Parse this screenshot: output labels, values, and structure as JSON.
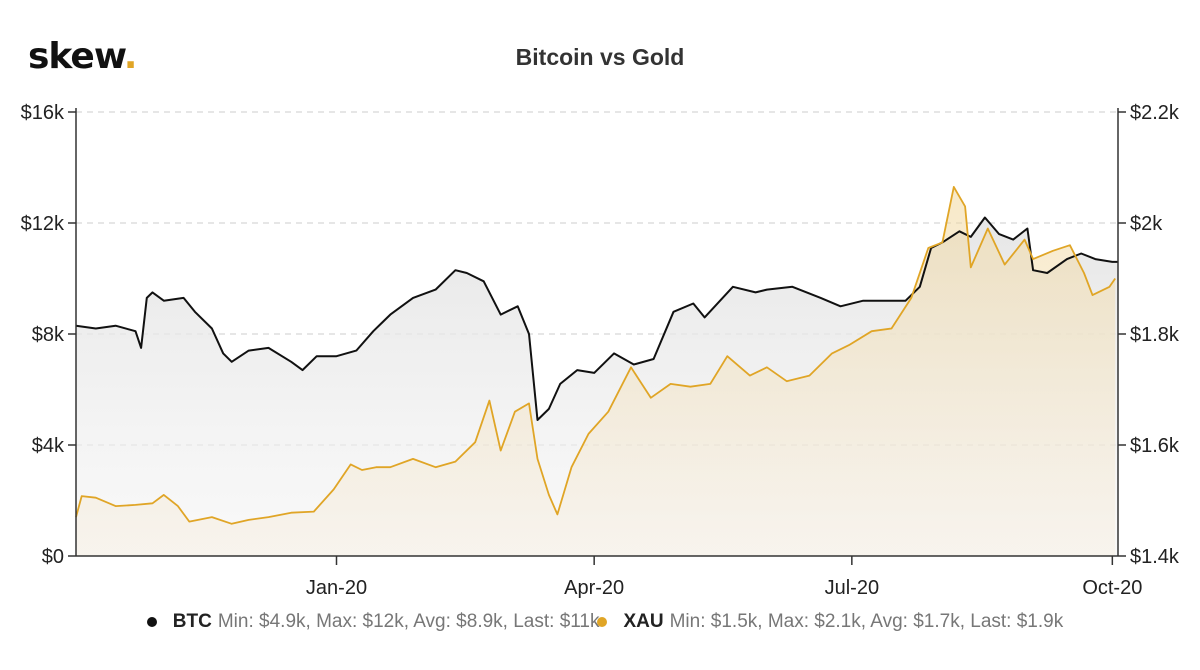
{
  "logo": {
    "text": "skew",
    "dot": "."
  },
  "colors": {
    "btc": "#111111",
    "xau": "#e0a526",
    "grid": "#dddddd",
    "axis": "#333333"
  },
  "chart_data": {
    "type": "line",
    "title": "Bitcoin vs Gold",
    "x_ticks": [
      "Jan-20",
      "Apr-20",
      "Jul-20",
      "Oct-20"
    ],
    "x_tick_dates": [
      "2020-01-01",
      "2020-04-01",
      "2020-07-01",
      "2020-10-01"
    ],
    "x_range": [
      "2019-10-01",
      "2020-10-03"
    ],
    "y_left": {
      "ticks": [
        "$0",
        "$4k",
        "$8k",
        "$12k",
        "$16k"
      ],
      "range": [
        0,
        16000
      ]
    },
    "y_right": {
      "ticks": [
        "$1.4k",
        "$1.6k",
        "$1.8k",
        "$2k",
        "$2.2k"
      ],
      "range": [
        1400,
        2200
      ]
    },
    "grid": true,
    "legend_position": "bottom",
    "series": [
      {
        "name": "BTC",
        "axis": "left",
        "color": "#111111",
        "stats": "Min: $4.9k, Max: $12k, Avg: $8.9k, Last: $11k",
        "points": [
          [
            "2019-10-01",
            8300
          ],
          [
            "2019-10-08",
            8200
          ],
          [
            "2019-10-15",
            8300
          ],
          [
            "2019-10-22",
            8100
          ],
          [
            "2019-10-24",
            7500
          ],
          [
            "2019-10-26",
            9300
          ],
          [
            "2019-10-28",
            9500
          ],
          [
            "2019-11-01",
            9200
          ],
          [
            "2019-11-08",
            9300
          ],
          [
            "2019-11-12",
            8800
          ],
          [
            "2019-11-18",
            8200
          ],
          [
            "2019-11-22",
            7300
          ],
          [
            "2019-11-25",
            7000
          ],
          [
            "2019-12-01",
            7400
          ],
          [
            "2019-12-08",
            7500
          ],
          [
            "2019-12-16",
            7000
          ],
          [
            "2019-12-20",
            6700
          ],
          [
            "2019-12-25",
            7200
          ],
          [
            "2020-01-01",
            7200
          ],
          [
            "2020-01-08",
            7400
          ],
          [
            "2020-01-14",
            8100
          ],
          [
            "2020-01-20",
            8700
          ],
          [
            "2020-01-28",
            9300
          ],
          [
            "2020-02-05",
            9600
          ],
          [
            "2020-02-12",
            10300
          ],
          [
            "2020-02-16",
            10200
          ],
          [
            "2020-02-22",
            9900
          ],
          [
            "2020-02-28",
            8700
          ],
          [
            "2020-03-05",
            9000
          ],
          [
            "2020-03-09",
            8000
          ],
          [
            "2020-03-12",
            4900
          ],
          [
            "2020-03-16",
            5300
          ],
          [
            "2020-03-20",
            6200
          ],
          [
            "2020-03-26",
            6700
          ],
          [
            "2020-04-01",
            6600
          ],
          [
            "2020-04-08",
            7300
          ],
          [
            "2020-04-15",
            6900
          ],
          [
            "2020-04-22",
            7100
          ],
          [
            "2020-04-29",
            8800
          ],
          [
            "2020-05-06",
            9100
          ],
          [
            "2020-05-10",
            8600
          ],
          [
            "2020-05-20",
            9700
          ],
          [
            "2020-05-28",
            9500
          ],
          [
            "2020-06-01",
            9600
          ],
          [
            "2020-06-10",
            9700
          ],
          [
            "2020-06-20",
            9300
          ],
          [
            "2020-06-27",
            9000
          ],
          [
            "2020-07-05",
            9200
          ],
          [
            "2020-07-12",
            9200
          ],
          [
            "2020-07-20",
            9200
          ],
          [
            "2020-07-25",
            9700
          ],
          [
            "2020-07-29",
            11100
          ],
          [
            "2020-08-02",
            11300
          ],
          [
            "2020-08-08",
            11700
          ],
          [
            "2020-08-12",
            11500
          ],
          [
            "2020-08-17",
            12200
          ],
          [
            "2020-08-22",
            11600
          ],
          [
            "2020-08-27",
            11400
          ],
          [
            "2020-09-01",
            11800
          ],
          [
            "2020-09-03",
            10300
          ],
          [
            "2020-09-08",
            10200
          ],
          [
            "2020-09-15",
            10700
          ],
          [
            "2020-09-20",
            10900
          ],
          [
            "2020-09-25",
            10700
          ],
          [
            "2020-10-01",
            10600
          ],
          [
            "2020-10-03",
            10600
          ]
        ]
      },
      {
        "name": "XAU",
        "axis": "right",
        "color": "#e0a526",
        "stats": "Min: $1.5k, Max: $2.1k, Avg: $1.7k, Last: $1.9k",
        "points": [
          [
            "2019-10-01",
            1470
          ],
          [
            "2019-10-03",
            1508
          ],
          [
            "2019-10-08",
            1505
          ],
          [
            "2019-10-15",
            1490
          ],
          [
            "2019-10-22",
            1492
          ],
          [
            "2019-10-28",
            1495
          ],
          [
            "2019-11-01",
            1510
          ],
          [
            "2019-11-06",
            1490
          ],
          [
            "2019-11-10",
            1462
          ],
          [
            "2019-11-18",
            1470
          ],
          [
            "2019-11-25",
            1458
          ],
          [
            "2019-12-01",
            1465
          ],
          [
            "2019-12-08",
            1470
          ],
          [
            "2019-12-16",
            1478
          ],
          [
            "2019-12-24",
            1480
          ],
          [
            "2019-12-31",
            1520
          ],
          [
            "2020-01-06",
            1565
          ],
          [
            "2020-01-10",
            1555
          ],
          [
            "2020-01-15",
            1560
          ],
          [
            "2020-01-20",
            1560
          ],
          [
            "2020-01-28",
            1575
          ],
          [
            "2020-02-05",
            1560
          ],
          [
            "2020-02-12",
            1570
          ],
          [
            "2020-02-19",
            1605
          ],
          [
            "2020-02-24",
            1680
          ],
          [
            "2020-02-28",
            1590
          ],
          [
            "2020-03-04",
            1660
          ],
          [
            "2020-03-09",
            1675
          ],
          [
            "2020-03-12",
            1575
          ],
          [
            "2020-03-16",
            1510
          ],
          [
            "2020-03-19",
            1475
          ],
          [
            "2020-03-24",
            1560
          ],
          [
            "2020-03-30",
            1620
          ],
          [
            "2020-04-06",
            1660
          ],
          [
            "2020-04-14",
            1740
          ],
          [
            "2020-04-21",
            1685
          ],
          [
            "2020-04-28",
            1710
          ],
          [
            "2020-05-05",
            1705
          ],
          [
            "2020-05-12",
            1710
          ],
          [
            "2020-05-18",
            1760
          ],
          [
            "2020-05-26",
            1725
          ],
          [
            "2020-06-01",
            1740
          ],
          [
            "2020-06-08",
            1715
          ],
          [
            "2020-06-16",
            1725
          ],
          [
            "2020-06-24",
            1765
          ],
          [
            "2020-06-30",
            1780
          ],
          [
            "2020-07-08",
            1805
          ],
          [
            "2020-07-15",
            1810
          ],
          [
            "2020-07-22",
            1865
          ],
          [
            "2020-07-28",
            1955
          ],
          [
            "2020-08-02",
            1965
          ],
          [
            "2020-08-06",
            2065
          ],
          [
            "2020-08-10",
            2030
          ],
          [
            "2020-08-12",
            1920
          ],
          [
            "2020-08-18",
            1990
          ],
          [
            "2020-08-24",
            1925
          ],
          [
            "2020-08-31",
            1970
          ],
          [
            "2020-09-03",
            1935
          ],
          [
            "2020-09-10",
            1950
          ],
          [
            "2020-09-16",
            1960
          ],
          [
            "2020-09-21",
            1910
          ],
          [
            "2020-09-24",
            1870
          ],
          [
            "2020-09-30",
            1885
          ],
          [
            "2020-10-02",
            1900
          ]
        ]
      }
    ]
  }
}
